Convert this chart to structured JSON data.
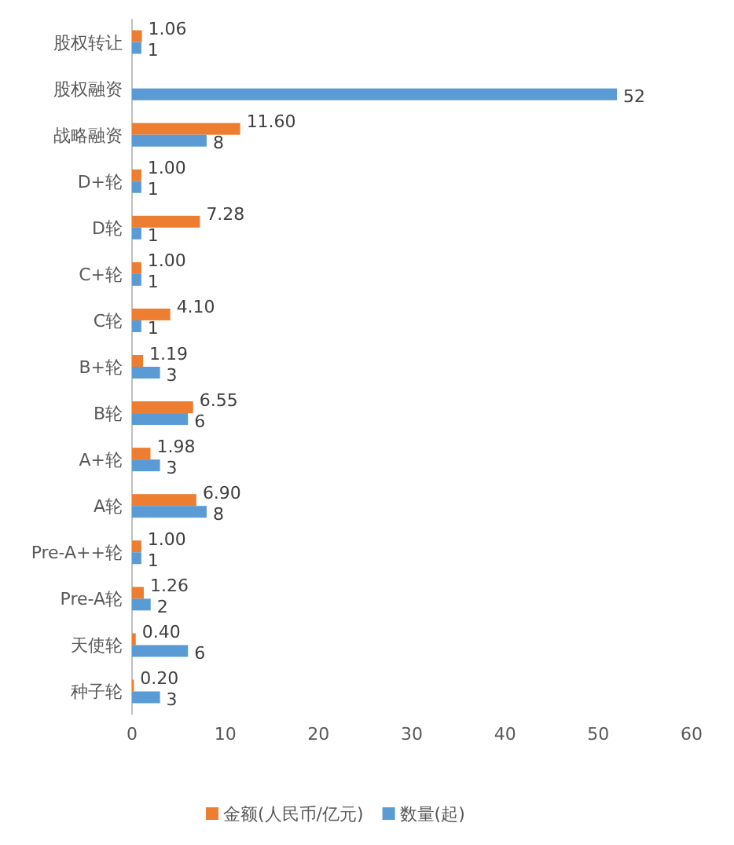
{
  "chart_data": {
    "type": "bar",
    "orientation": "horizontal",
    "categories": [
      "股权转让",
      "股权融资",
      "战略融资",
      "D+轮",
      "D轮",
      "C+轮",
      "C轮",
      "B+轮",
      "B轮",
      "A+轮",
      "A轮",
      "Pre-A++轮",
      "Pre-A轮",
      "天使轮",
      "种子轮"
    ],
    "series": [
      {
        "name": "金额(人民币/亿元)",
        "color": "#ed7d31",
        "values": [
          1.06,
          null,
          11.6,
          1.0,
          7.28,
          1.0,
          4.1,
          1.19,
          6.55,
          1.98,
          6.9,
          1.0,
          1.26,
          0.4,
          0.2
        ],
        "value_labels": [
          "1.06",
          null,
          "11.60",
          "1.00",
          "7.28",
          "1.00",
          "4.10",
          "1.19",
          "6.55",
          "1.98",
          "6.90",
          "1.00",
          "1.26",
          "0.40",
          "0.20"
        ]
      },
      {
        "name": "数量(起)",
        "color": "#5b9bd5",
        "values": [
          1,
          52,
          8,
          1,
          1,
          1,
          1,
          3,
          6,
          3,
          8,
          1,
          2,
          6,
          3
        ],
        "value_labels": [
          "1",
          "52",
          "8",
          "1",
          "1",
          "1",
          "1",
          "3",
          "6",
          "3",
          "8",
          "1",
          "2",
          "6",
          "3"
        ]
      }
    ],
    "xlim": [
      0,
      60
    ],
    "xticks": [
      0,
      10,
      20,
      30,
      40,
      50,
      60
    ],
    "legend": "bottom"
  }
}
